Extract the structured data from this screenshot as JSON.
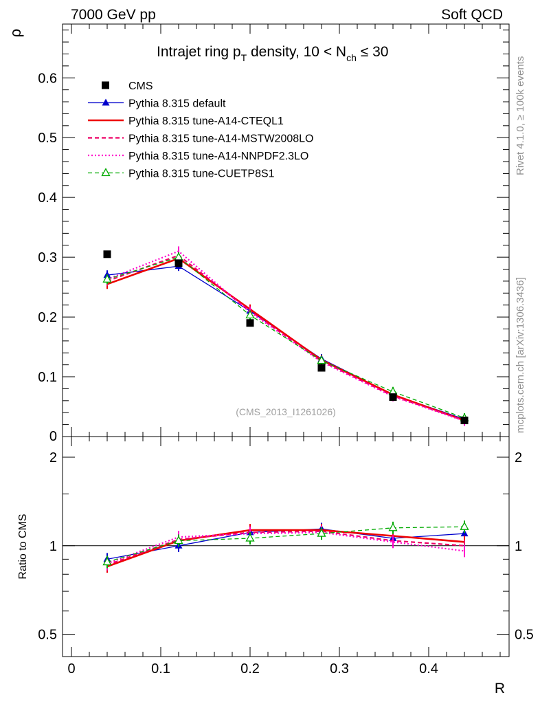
{
  "header": {
    "left": "7000 GeV pp",
    "right": "Soft QCD",
    "side_top": "Rivet 4.1.0, ≥ 100k events",
    "side_bottom": "mcplots.cern.ch [arXiv:1306.3436]",
    "analysis_id": "(CMS_2013_I1261026)"
  },
  "colors": {
    "cms": "#000000",
    "default": "#0000cc",
    "cteql1": "#ee0000",
    "mstw": "#ee0066",
    "nnpdf": "#ff00cc",
    "cuetp8s1": "#00aa00"
  },
  "chart_data": [
    {
      "type": "line",
      "title_main": "Intrajet ring p",
      "title_sub_t": "T",
      "title_mid": " density, 10 < N",
      "title_sub_ch": "ch",
      "title_end": " ≤ 30",
      "ylabel": "ρ",
      "xlabel": "",
      "xlim": [
        -0.01,
        0.49
      ],
      "ylim": [
        0,
        0.69
      ],
      "yticks": [
        0.1,
        0.2,
        0.3,
        0.4,
        0.5,
        0.6
      ],
      "ytick_labels": [
        "0.1",
        "0.2",
        "0.3",
        "0.4",
        "0.5",
        "0.6"
      ],
      "y_zero_label": "0",
      "x": [
        0.04,
        0.12,
        0.2,
        0.28,
        0.36,
        0.44
      ],
      "series": [
        {
          "name": "CMS",
          "key": "cms",
          "style": "marker-square",
          "values": [
            0.305,
            0.29,
            0.19,
            0.115,
            0.066,
            0.027
          ]
        },
        {
          "name": "Pythia 8.315 default",
          "key": "default",
          "style": "solid-thin-triangle",
          "values": [
            0.27,
            0.285,
            0.21,
            0.13,
            0.07,
            0.029
          ]
        },
        {
          "name": "Pythia 8.315 tune-A14-CTEQL1",
          "key": "cteql1",
          "style": "solid-thick",
          "values": [
            0.255,
            0.298,
            0.213,
            0.128,
            0.07,
            0.027
          ]
        },
        {
          "name": "Pythia 8.315 tune-A14-MSTW2008LO",
          "key": "mstw",
          "style": "dashed",
          "values": [
            0.26,
            0.303,
            0.21,
            0.126,
            0.068,
            0.027
          ]
        },
        {
          "name": "Pythia 8.315 tune-A14-NNPDF2.3LO",
          "key": "nnpdf",
          "style": "dotted",
          "values": [
            0.263,
            0.31,
            0.208,
            0.125,
            0.067,
            0.026
          ]
        },
        {
          "name": "Pythia 8.315 tune-CUETP8S1",
          "key": "cuetp8s1",
          "style": "dashed-open-triangle",
          "values": [
            0.263,
            0.3,
            0.203,
            0.127,
            0.075,
            0.031
          ]
        }
      ]
    },
    {
      "type": "line",
      "ylabel": "Ratio to CMS",
      "xlabel": "R",
      "scale": "log",
      "xlim": [
        -0.01,
        0.49
      ],
      "ylim": [
        0.42,
        2.35
      ],
      "yticks": [
        0.5,
        1,
        2
      ],
      "ytick_labels": [
        "0.5",
        "1",
        "2"
      ],
      "xticks": [
        0,
        0.1,
        0.2,
        0.3,
        0.4
      ],
      "xtick_labels": [
        "0",
        "0.1",
        "0.2",
        "0.3",
        "0.4"
      ],
      "x": [
        0.04,
        0.12,
        0.2,
        0.28,
        0.36,
        0.44
      ],
      "series": [
        {
          "name": "Pythia 8.315 default",
          "key": "default",
          "values": [
            0.9,
            1.0,
            1.11,
            1.14,
            1.06,
            1.1
          ]
        },
        {
          "name": "Pythia 8.315 tune-A14-CTEQL1",
          "key": "cteql1",
          "values": [
            0.85,
            1.04,
            1.13,
            1.13,
            1.08,
            1.03
          ]
        },
        {
          "name": "Pythia 8.315 tune-A14-MSTW2008LO",
          "key": "mstw",
          "values": [
            0.86,
            1.05,
            1.11,
            1.12,
            1.04,
            1.0
          ]
        },
        {
          "name": "Pythia 8.315 tune-A14-NNPDF2.3LO",
          "key": "nnpdf",
          "values": [
            0.87,
            1.07,
            1.1,
            1.11,
            1.03,
            0.96
          ]
        },
        {
          "name": "Pythia 8.315 tune-CUETP8S1",
          "key": "cuetp8s1",
          "values": [
            0.88,
            1.04,
            1.06,
            1.1,
            1.15,
            1.16
          ]
        }
      ]
    }
  ]
}
